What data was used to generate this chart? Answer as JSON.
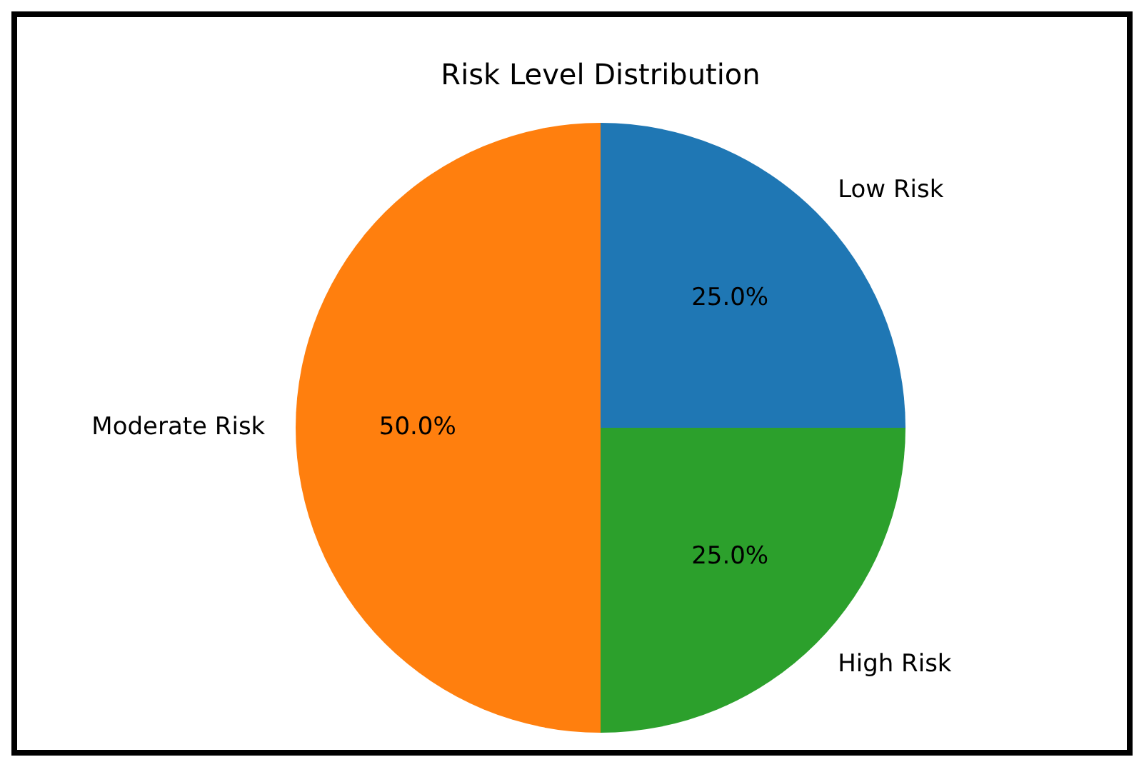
{
  "chart_data": {
    "type": "pie",
    "title": "Risk Level Distribution",
    "categories": [
      "Low Risk",
      "Moderate Risk",
      "High Risk"
    ],
    "values": [
      25,
      50,
      25
    ],
    "colors": [
      "#1f77b4",
      "#ff7f0e",
      "#2ca02c"
    ],
    "value_labels": [
      "25.0%",
      "50.0%",
      "25.0%"
    ],
    "legend": false
  }
}
